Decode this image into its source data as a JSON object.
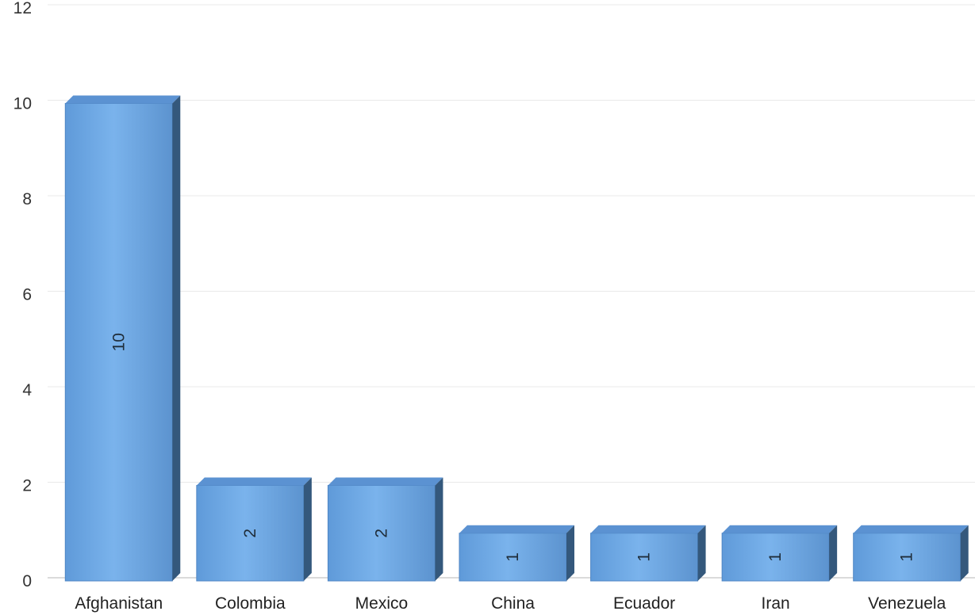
{
  "chart_data": {
    "type": "bar",
    "title": "",
    "xlabel": "",
    "ylabel": "",
    "categories": [
      "Afghanistan",
      "Colombia",
      "Mexico",
      "China",
      "Ecuador",
      "Iran",
      "Venezuela"
    ],
    "values": [
      10,
      2,
      2,
      1,
      1,
      1,
      1
    ],
    "data_labels": [
      "10",
      "2",
      "2",
      "1",
      "1",
      "1",
      "1"
    ],
    "yticks": [
      "0",
      "2",
      "4",
      "6",
      "8",
      "10",
      "12"
    ],
    "ylim": [
      0,
      12
    ],
    "grid": true,
    "legend": "none",
    "style": "3d",
    "colors": {
      "bar_front": "#6fa8e6",
      "bar_top": "#5b92d2",
      "bar_side": "#34587c",
      "grid": "#e9e9e9",
      "axis": "#cfcfcf"
    }
  }
}
